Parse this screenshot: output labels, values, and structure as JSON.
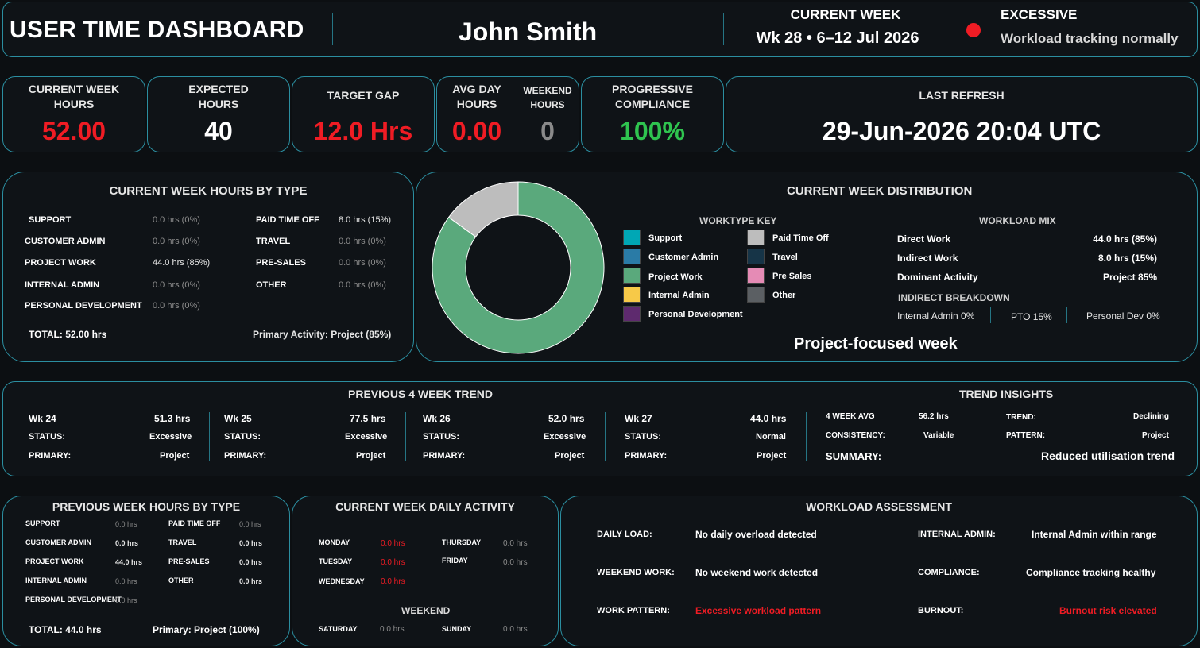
{
  "header": {
    "title": "USER TIME DASHBOARD",
    "user_name": "John Smith",
    "current_week_label": "CURRENT WEEK",
    "current_week_value": "Wk 28 • 6–12 Jul 2026",
    "status_label": "EXCESSIVE",
    "status_message": "Workload tracking normally",
    "status_color": "#f01c24"
  },
  "kpis": {
    "current_week_hours": {
      "label_line1": "CURRENT WEEK",
      "label_line2": "HOURS",
      "value": "52.00"
    },
    "expected_hours": {
      "label_line1": "EXPECTED",
      "label_line2": "HOURS",
      "value": "40"
    },
    "target_gap": {
      "label": "TARGET GAP",
      "value": "12.0 Hrs"
    },
    "avg_day_hours": {
      "label_line1": "AVG DAY",
      "label_line2": "HOURS",
      "value": "0.00"
    },
    "weekend_hours": {
      "label_line1": "WEEKEND",
      "label_line2": "HOURS",
      "value": "0"
    },
    "progressive_compliance": {
      "label_line1": "PROGRESSIVE",
      "label_line2": "COMPLIANCE",
      "value": "100%"
    },
    "last_refresh": {
      "label": "LAST REFRESH",
      "value": "29-Jun-2026 20:04 UTC"
    }
  },
  "hours_by_type": {
    "title": "CURRENT WEEK HOURS BY TYPE",
    "left": [
      {
        "label": "SUPPORT",
        "value": "0.0 hrs (0%)"
      },
      {
        "label": "CUSTOMER ADMIN",
        "value": "0.0 hrs (0%)"
      },
      {
        "label": "PROJECT WORK",
        "value": "44.0 hrs (85%)"
      },
      {
        "label": "INTERNAL ADMIN",
        "value": "0.0 hrs (0%)"
      },
      {
        "label": "PERSONAL DEVELOPMENT",
        "value": "0.0 hrs (0%)"
      }
    ],
    "right": [
      {
        "label": "PAID TIME OFF",
        "value": "8.0 hrs (15%)"
      },
      {
        "label": "TRAVEL",
        "value": "0.0 hrs (0%)"
      },
      {
        "label": "PRE-SALES",
        "value": "0.0 hrs (0%)"
      },
      {
        "label": "OTHER",
        "value": "0.0 hrs (0%)"
      }
    ],
    "total": "TOTAL: 52.00 hrs",
    "primary": "Primary Activity: Project (85%)"
  },
  "distribution": {
    "title": "CURRENT WEEK DISTRIBUTION",
    "donut": [
      {
        "name": "Project Work",
        "percent": 85,
        "color": "#5aa97c"
      },
      {
        "name": "Paid Time Off",
        "percent": 15,
        "color": "#bdbdbd"
      }
    ],
    "worktype_key_title": "WORKTYPE KEY",
    "key_left": [
      {
        "label": "Support",
        "color": "#00a7b5"
      },
      {
        "label": "Customer Admin",
        "color": "#2a7ba6"
      },
      {
        "label": "Project Work",
        "color": "#5aa97c"
      },
      {
        "label": "Internal Admin",
        "color": "#f7c948"
      },
      {
        "label": "Personal Development",
        "color": "#5e2a6e"
      }
    ],
    "key_right": [
      {
        "label": "Paid  Time Off",
        "color": "#bdbdbd"
      },
      {
        "label": "Travel",
        "color": "#163447"
      },
      {
        "label": "Pre Sales",
        "color": "#e58bb5"
      },
      {
        "label": "Other",
        "color": "#5b5f63"
      }
    ],
    "workload_mix_title": "WORKLOAD MIX",
    "mix": [
      {
        "label": "Direct Work",
        "value": "44.0 hrs (85%)"
      },
      {
        "label": "Indirect Work",
        "value": "8.0 hrs (15%)"
      },
      {
        "label": "Dominant Activity",
        "value": "Project 85%"
      }
    ],
    "indirect_breakdown_title": "INDIRECT BREAKDOWN",
    "indirect": {
      "internal_admin": "Internal Admin 0%",
      "pto": "PTO 15%",
      "personal_dev": "Personal Dev 0%"
    },
    "summary": "Project-focused week"
  },
  "trend": {
    "title": "PREVIOUS 4 WEEK TREND",
    "status_label": "STATUS:",
    "primary_label": "PRIMARY:",
    "weeks": [
      {
        "week": "Wk 24",
        "hours": "51.3 hrs",
        "status": "Excessive",
        "primary": "Project"
      },
      {
        "week": "Wk 25",
        "hours": "77.5 hrs",
        "status": "Excessive",
        "primary": "Project"
      },
      {
        "week": "Wk 26",
        "hours": "52.0 hrs",
        "status": "Excessive",
        "primary": "Project"
      },
      {
        "week": "Wk 27",
        "hours": "44.0 hrs",
        "status": "Normal",
        "primary": "Project"
      }
    ]
  },
  "insights": {
    "title": "TREND INSIGHTS",
    "avg_label": "4 WEEK AVG",
    "avg_value": "56.2 hrs",
    "trend_label": "TREND:",
    "trend_value": "Declining",
    "consistency_label": "CONSISTENCY:",
    "consistency_value": "Variable",
    "pattern_label": "PATTERN:",
    "pattern_value": "Project",
    "summary_label": "SUMMARY:",
    "summary_value": "Reduced utilisation trend"
  },
  "prev_week": {
    "title": "PREVIOUS WEEK HOURS BY TYPE",
    "left": [
      {
        "label": "SUPPORT",
        "value": "0.0 hrs"
      },
      {
        "label": "CUSTOMER ADMIN",
        "value": "0.0 hrs"
      },
      {
        "label": "PROJECT WORK",
        "value": "44.0 hrs"
      },
      {
        "label": "INTERNAL ADMIN",
        "value": "0.0 hrs"
      },
      {
        "label": "PERSONAL DEVELOPMENT",
        "value": "0.0 hrs"
      }
    ],
    "right": [
      {
        "label": "PAID TIME OFF",
        "value": "0.0 hrs"
      },
      {
        "label": "TRAVEL",
        "value": "0.0 hrs"
      },
      {
        "label": "PRE-SALES",
        "value": "0.0 hrs"
      },
      {
        "label": "OTHER",
        "value": "0.0 hrs"
      }
    ],
    "total": "TOTAL: 44.0 hrs",
    "primary": "Primary: Project (100%)"
  },
  "daily": {
    "title": "CURRENT WEEK DAILY ACTIVITY",
    "weekdays_left": [
      {
        "day": "MONDAY",
        "value": "0.0 hrs"
      },
      {
        "day": "TUESDAY",
        "value": "0.0 hrs"
      },
      {
        "day": "WEDNESDAY",
        "value": "0.0 hrs"
      }
    ],
    "weekdays_right": [
      {
        "day": "THURSDAY",
        "value": "0.0 hrs"
      },
      {
        "day": "FRIDAY",
        "value": "0.0 hrs"
      }
    ],
    "weekend_title": "WEEKEND",
    "weekend": [
      {
        "day": "SATURDAY",
        "value": "0.0 hrs"
      },
      {
        "day": "SUNDAY",
        "value": "0.0 hrs"
      }
    ]
  },
  "assessment": {
    "title": "WORKLOAD ASSESSMENT",
    "daily_load_label": "DAILY LOAD:",
    "daily_load_value": "No daily overload detected",
    "weekend_work_label": "WEEKEND WORK:",
    "weekend_work_value": "No weekend work detected",
    "work_pattern_label": "WORK PATTERN:",
    "work_pattern_value": "Excessive workload pattern",
    "internal_admin_label": "INTERNAL ADMIN:",
    "internal_admin_value": "Internal Admin within range",
    "compliance_label": "COMPLIANCE:",
    "compliance_value": "Compliance tracking healthy",
    "burnout_label": "BURNOUT:",
    "burnout_value": "Burnout risk elevated"
  }
}
